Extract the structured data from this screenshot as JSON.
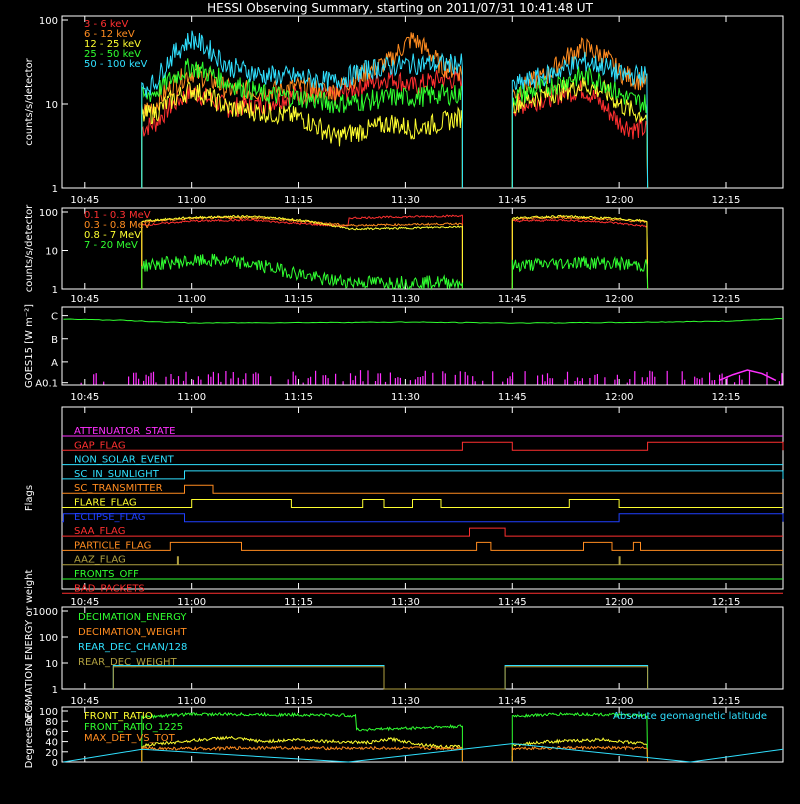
{
  "title": "HESSI Observing Summary, starting on 2011/07/31 10:41:48 UT",
  "time_axis": {
    "start": "10:41:48",
    "end": "12:23",
    "ticks": [
      "10:45",
      "11:00",
      "11:15",
      "11:30",
      "11:45",
      "12:00",
      "12:15"
    ]
  },
  "chart_data": [
    {
      "type": "line",
      "ylabel": "counts/s/detector",
      "ylog": true,
      "ylim": [
        1,
        100
      ],
      "yticks": [
        "1",
        "10",
        "100"
      ],
      "legend_placement": "top-left",
      "segments": [
        [
          "10:53",
          "11:38"
        ],
        [
          "11:45",
          "12:04"
        ]
      ],
      "series": [
        {
          "name": "3 - 6 keV",
          "color": "#ff3030",
          "x": [
            "10:53",
            "10:55",
            "11:00",
            "11:05",
            "11:10",
            "11:15",
            "11:20",
            "11:25",
            "11:28",
            "11:31",
            "11:35",
            "11:38",
            "11:45",
            "11:50",
            "11:55",
            "11:58",
            "12:00",
            "12:02",
            "12:04"
          ],
          "y": [
            5,
            6,
            14,
            9,
            10,
            13,
            12,
            18,
            21,
            16,
            20,
            19,
            9,
            12,
            15,
            9,
            6,
            5,
            5
          ]
        },
        {
          "name": "6 - 12 keV",
          "color": "#ff8c20",
          "x": [
            "10:53",
            "10:55",
            "11:00",
            "11:05",
            "11:10",
            "11:15",
            "11:20",
            "11:25",
            "11:28",
            "11:31",
            "11:35",
            "11:38",
            "11:45",
            "11:50",
            "11:55",
            "11:58",
            "12:00",
            "12:02",
            "12:04"
          ],
          "y": [
            8,
            10,
            24,
            15,
            14,
            16,
            14,
            25,
            33,
            60,
            28,
            24,
            13,
            22,
            48,
            36,
            24,
            20,
            18
          ]
        },
        {
          "name": "12 - 25 keV",
          "color": "#ffff30",
          "x": [
            "10:53",
            "10:55",
            "11:00",
            "11:05",
            "11:10",
            "11:15",
            "11:20",
            "11:25",
            "11:28",
            "11:31",
            "11:35",
            "11:38",
            "11:45",
            "11:50",
            "11:55",
            "11:58",
            "12:00",
            "12:02",
            "12:04"
          ],
          "y": [
            7,
            8,
            15,
            9,
            8,
            7,
            4,
            5,
            6,
            5,
            6,
            7,
            10,
            13,
            17,
            14,
            10,
            8,
            7
          ]
        },
        {
          "name": "25 - 50 keV",
          "color": "#30ff30",
          "x": [
            "10:53",
            "10:55",
            "11:00",
            "11:05",
            "11:10",
            "11:15",
            "11:20",
            "11:25",
            "11:28",
            "11:31",
            "11:35",
            "11:38",
            "11:45",
            "11:50",
            "11:55",
            "11:58",
            "12:00",
            "12:02",
            "12:04"
          ],
          "y": [
            12,
            14,
            28,
            18,
            13,
            12,
            10,
            11,
            12,
            12,
            13,
            13,
            12,
            16,
            22,
            18,
            13,
            11,
            10
          ]
        },
        {
          "name": "50 - 100 keV",
          "color": "#30e0ff",
          "x": [
            "10:53",
            "10:55",
            "11:00",
            "11:05",
            "11:10",
            "11:15",
            "11:20",
            "11:25",
            "11:28",
            "11:31",
            "11:35",
            "11:38",
            "11:45",
            "11:50",
            "11:55",
            "11:58",
            "12:00",
            "12:02",
            "12:04"
          ],
          "y": [
            15,
            18,
            60,
            28,
            22,
            21,
            18,
            26,
            28,
            30,
            30,
            30,
            16,
            22,
            32,
            28,
            22,
            22,
            22
          ]
        }
      ]
    },
    {
      "type": "line",
      "ylabel": "counts/s/detector",
      "ylog": true,
      "ylim": [
        1,
        100
      ],
      "yticks": [
        "1",
        "10",
        "100"
      ],
      "legend_placement": "top-left",
      "segments": [
        [
          "10:53",
          "11:38"
        ],
        [
          "11:45",
          "12:04"
        ]
      ],
      "series": [
        {
          "name": "0.1 - 0.3 MeV",
          "color": "#ff3030",
          "x": [
            "10:53",
            "11:00",
            "11:08",
            "11:15",
            "11:22",
            "11:22",
            "11:30",
            "11:38",
            "11:45",
            "11:52",
            "11:58",
            "12:04"
          ],
          "y": [
            45,
            58,
            62,
            50,
            42,
            70,
            75,
            80,
            58,
            62,
            55,
            42
          ]
        },
        {
          "name": "0.3 - 0.8 MeV",
          "color": "#ff8c20",
          "x": [
            "10:53",
            "11:00",
            "11:08",
            "11:15",
            "11:22",
            "11:30",
            "11:38",
            "11:45",
            "11:52",
            "11:58",
            "12:04"
          ],
          "y": [
            55,
            68,
            72,
            58,
            45,
            47,
            50,
            65,
            72,
            65,
            55
          ]
        },
        {
          "name": "0.8 - 7 MeV",
          "color": "#ffff30",
          "x": [
            "10:53",
            "11:00",
            "11:08",
            "11:15",
            "11:22",
            "11:30",
            "11:38",
            "11:45",
            "11:52",
            "11:58",
            "12:04"
          ],
          "y": [
            58,
            72,
            78,
            62,
            36,
            38,
            42,
            70,
            78,
            70,
            58
          ]
        },
        {
          "name": "7 - 20 MeV",
          "color": "#30ff30",
          "x": [
            "10:53",
            "10:58",
            "11:03",
            "11:08",
            "11:13",
            "11:18",
            "11:23",
            "11:30",
            "11:38",
            "11:45",
            "11:50",
            "11:55",
            "12:00",
            "12:04"
          ],
          "y": [
            4,
            5,
            5.5,
            4.5,
            3,
            1.8,
            1.5,
            1.5,
            1.5,
            4,
            4.5,
            5,
            4.5,
            4
          ]
        }
      ]
    },
    {
      "type": "line",
      "ylabel": "GOES15 [W m⁻²]",
      "yticks": [
        "A0.1",
        "A",
        "B",
        "C"
      ],
      "ylim": [
        0.1,
        3.2
      ],
      "series": [
        {
          "name": "",
          "color": "#30ff30",
          "x": [
            "10:42",
            "10:50",
            "11:00",
            "11:15",
            "11:30",
            "11:45",
            "12:00",
            "12:15",
            "12:23"
          ],
          "y": [
            2.85,
            2.8,
            2.68,
            2.7,
            2.72,
            2.68,
            2.7,
            2.76,
            2.88
          ]
        },
        {
          "name": "",
          "color": "#ff30ff",
          "x": [
            "12:14",
            "12:16",
            "12:18",
            "12:20",
            "12:22"
          ],
          "y": [
            0.2,
            0.45,
            0.65,
            0.5,
            0.2
          ]
        }
      ],
      "spike_color": "#ff30ff"
    },
    {
      "type": "line",
      "ylabel": "Flags",
      "flags": [
        {
          "name": "ATTENUATOR_STATE",
          "color": "#ff30ff",
          "on": []
        },
        {
          "name": "GAP_FLAG",
          "color": "#ff3030",
          "on": [
            [
              "11:38",
              "11:45"
            ],
            [
              "12:04",
              "12:23"
            ]
          ]
        },
        {
          "name": "NON_SOLAR_EVENT",
          "color": "#30e0ff",
          "on": []
        },
        {
          "name": "SC_IN_SUNLIGHT",
          "color": "#30e0ff",
          "on": [
            [
              "10:59",
              "12:23"
            ]
          ]
        },
        {
          "name": "SC_TRANSMITTER",
          "color": "#ff8c20",
          "on": [
            [
              "10:59",
              "11:03"
            ]
          ]
        },
        {
          "name": "FLARE_FLAG",
          "color": "#ffff30",
          "on": [
            [
              "11:00",
              "11:14"
            ],
            [
              "11:24",
              "11:27"
            ],
            [
              "11:31",
              "11:35"
            ],
            [
              "11:53",
              "12:00"
            ]
          ]
        },
        {
          "name": "ECLIPSE_FLAG",
          "color": "#2040ff",
          "on": [
            [
              "10:42",
              "10:59"
            ],
            [
              "12:00",
              "12:23"
            ]
          ]
        },
        {
          "name": "SAA_FLAG",
          "color": "#ff3030",
          "on": [
            [
              "11:39",
              "11:44"
            ]
          ]
        },
        {
          "name": "PARTICLE_FLAG",
          "color": "#ff8c20",
          "on": [
            [
              "10:57",
              "11:07"
            ],
            [
              "11:40",
              "11:42"
            ],
            [
              "11:55",
              "11:59"
            ],
            [
              "12:02",
              "12:03"
            ]
          ]
        },
        {
          "name": "AAZ_FLAG",
          "color": "#b0a040",
          "on": [
            [
              "10:58",
              "10:58"
            ],
            [
              "12:00",
              "12:00"
            ]
          ]
        },
        {
          "name": "FRONTS_OFF",
          "color": "#30ff30",
          "on": []
        },
        {
          "name": "BAD_PACKETS",
          "color": "#ff3030",
          "on": []
        }
      ]
    },
    {
      "type": "line",
      "ylabel": "DECIMATION ENERGY or weight",
      "ylog": true,
      "ylim": [
        1,
        1000
      ],
      "yticks": [
        "1",
        "10",
        "100",
        "1000"
      ],
      "legend_placement": "top-left",
      "series": [
        {
          "name": "DECIMATION_ENERGY",
          "color": "#30ff30",
          "x": [],
          "y": []
        },
        {
          "name": "DECIMATION_WEIGHT",
          "color": "#ff8c20",
          "x": [],
          "y": []
        },
        {
          "name": "REAR_DEC_CHAN/128",
          "color": "#30e0ff",
          "x": [
            "10:49",
            "10:49",
            "11:27",
            "11:27",
            "11:44",
            "11:44",
            "12:04",
            "12:04"
          ],
          "y": [
            1,
            8,
            8,
            1,
            1,
            8,
            8,
            1
          ]
        },
        {
          "name": "REAR_DEC_WEIGHT",
          "color": "#b0a040",
          "x": [
            "10:49",
            "10:49",
            "11:27",
            "11:27",
            "11:44",
            "11:44",
            "12:04",
            "12:04"
          ],
          "y": [
            1,
            7.2,
            7.2,
            1,
            1,
            7.2,
            7.2,
            1
          ]
        }
      ]
    },
    {
      "type": "line",
      "ylabel": "Degrees or %",
      "ylim": [
        0,
        100
      ],
      "yticks": [
        "0",
        "20",
        "40",
        "60",
        "80",
        "100"
      ],
      "legend_placement": "top-left",
      "segments": [
        [
          "10:53",
          "11:38"
        ],
        [
          "11:45",
          "12:04"
        ]
      ],
      "series": [
        {
          "name": "FRONT_RATIO",
          "color": "#ffff30",
          "x": [
            "10:53",
            "11:00",
            "11:05",
            "11:10",
            "11:15",
            "11:20",
            "11:25",
            "11:28",
            "11:32",
            "11:35",
            "11:38",
            "11:45",
            "11:50",
            "11:55",
            "11:58",
            "12:00",
            "12:04"
          ],
          "y": [
            32,
            42,
            48,
            40,
            44,
            40,
            38,
            45,
            35,
            30,
            30,
            33,
            40,
            42,
            44,
            40,
            36
          ]
        },
        {
          "name": "FRONT_RATIO_1225",
          "color": "#30ff30",
          "x": [
            "10:53",
            "11:00",
            "11:10",
            "11:20",
            "11:23",
            "11:23",
            "11:30",
            "11:38",
            "11:45",
            "11:52",
            "11:58",
            "12:04"
          ],
          "y": [
            88,
            94,
            93,
            92,
            91,
            63,
            66,
            70,
            90,
            94,
            93,
            90
          ]
        },
        {
          "name": "MAX_DET_VS_TOT",
          "color": "#ff8c20",
          "x": [
            "10:53",
            "11:00",
            "11:10",
            "11:20",
            "11:30",
            "11:38",
            "11:45",
            "11:55",
            "12:04"
          ],
          "y": [
            27,
            26,
            28,
            27,
            27,
            27,
            27,
            28,
            27
          ]
        },
        {
          "name": "Absolute geomagnetic latitude",
          "color": "#30e0ff",
          "x": [
            "10:42",
            "10:53",
            "11:22",
            "11:45",
            "12:10",
            "12:23"
          ],
          "y": [
            0,
            25,
            0,
            36,
            0,
            25
          ]
        }
      ]
    }
  ]
}
